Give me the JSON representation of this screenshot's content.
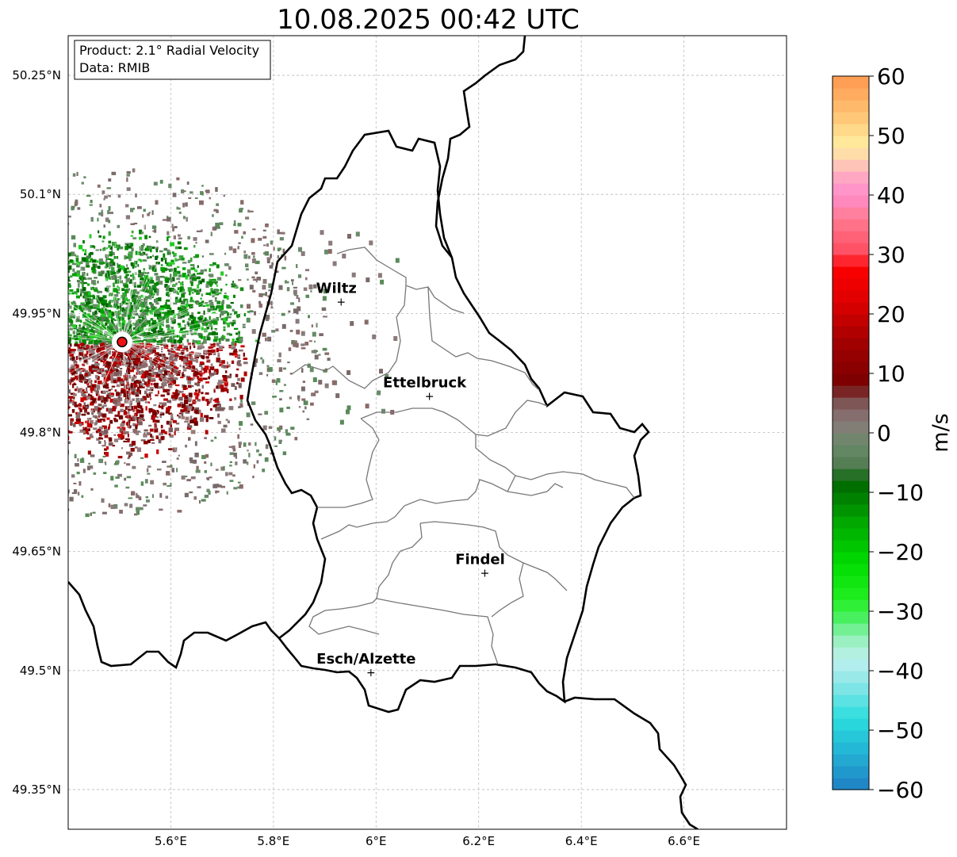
{
  "title": "10.08.2025 00:42 UTC",
  "info_box": {
    "product_line": "Product: 2.1° Radial Velocity",
    "data_line": "Data: RMIB"
  },
  "axes": {
    "lon_range": [
      5.4,
      6.8
    ],
    "lat_range": [
      49.3,
      50.3
    ],
    "lon_ticks": [
      {
        "value": 5.6,
        "label": "5.6°E"
      },
      {
        "value": 5.8,
        "label": "5.8°E"
      },
      {
        "value": 6.0,
        "label": "6°E"
      },
      {
        "value": 6.2,
        "label": "6.2°E"
      },
      {
        "value": 6.4,
        "label": "6.4°E"
      },
      {
        "value": 6.6,
        "label": "6.6°E"
      }
    ],
    "lat_ticks": [
      {
        "value": 50.25,
        "label": "50.25°N"
      },
      {
        "value": 50.1,
        "label": "50.1°N"
      },
      {
        "value": 49.95,
        "label": "49.95°N"
      },
      {
        "value": 49.8,
        "label": "49.8°N"
      },
      {
        "value": 49.65,
        "label": "49.65°N"
      },
      {
        "value": 49.5,
        "label": "49.5°N"
      },
      {
        "value": 49.35,
        "label": "49.35°N"
      }
    ]
  },
  "radar_site": {
    "lon": 5.505,
    "lat": 49.914,
    "color": "#ee1111"
  },
  "cities": [
    {
      "name": "Wiltz",
      "lon": 5.932,
      "lat": 49.966
    },
    {
      "name": "Ettelbruck",
      "lon": 6.104,
      "lat": 49.847
    },
    {
      "name": "Findel",
      "lon": 6.212,
      "lat": 49.624
    },
    {
      "name": "Esch/Alzette",
      "lon": 5.99,
      "lat": 49.499
    }
  ],
  "colorbar": {
    "unit_label": "m/s",
    "min": -60,
    "max": 60,
    "ticks": [
      {
        "value": 60,
        "label": "60"
      },
      {
        "value": 50,
        "label": "50"
      },
      {
        "value": 40,
        "label": "40"
      },
      {
        "value": 30,
        "label": "30"
      },
      {
        "value": 20,
        "label": "20"
      },
      {
        "value": 10,
        "label": "10"
      },
      {
        "value": 0,
        "label": "0"
      },
      {
        "value": -10,
        "label": "−10"
      },
      {
        "value": -20,
        "label": "−20"
      },
      {
        "value": -30,
        "label": "−30"
      },
      {
        "value": -40,
        "label": "−40"
      },
      {
        "value": -50,
        "label": "−50"
      },
      {
        "value": -60,
        "label": "−60"
      }
    ],
    "stops": [
      {
        "v": -60,
        "c": "#1f7fc4"
      },
      {
        "v": -54,
        "c": "#22b0d4"
      },
      {
        "v": -48,
        "c": "#2adede"
      },
      {
        "v": -42,
        "c": "#8ee6e6"
      },
      {
        "v": -38,
        "c": "#bff0f0"
      },
      {
        "v": -34,
        "c": "#8ef0b0"
      },
      {
        "v": -32,
        "c": "#55f075"
      },
      {
        "v": -28,
        "c": "#22ee22"
      },
      {
        "v": -22,
        "c": "#00dd00"
      },
      {
        "v": -15,
        "c": "#00a800"
      },
      {
        "v": -8,
        "c": "#006600"
      },
      {
        "v": -6,
        "c": "#4e7a4e"
      },
      {
        "v": -2,
        "c": "#6a8a6a"
      },
      {
        "v": 2,
        "c": "#8a7a7a"
      },
      {
        "v": 6,
        "c": "#7a4a4a"
      },
      {
        "v": 8,
        "c": "#7a0000"
      },
      {
        "v": 15,
        "c": "#a00000"
      },
      {
        "v": 22,
        "c": "#dd0000"
      },
      {
        "v": 28,
        "c": "#ff0000"
      },
      {
        "v": 30,
        "c": "#ff4a5e"
      },
      {
        "v": 36,
        "c": "#ff7a90"
      },
      {
        "v": 40,
        "c": "#ff8ccc"
      },
      {
        "v": 44,
        "c": "#ffb0c0"
      },
      {
        "v": 46,
        "c": "#ffd8b0"
      },
      {
        "v": 49,
        "c": "#ffe89a"
      },
      {
        "v": 54,
        "c": "#ffc070"
      },
      {
        "v": 60,
        "c": "#ff9850"
      }
    ]
  }
}
